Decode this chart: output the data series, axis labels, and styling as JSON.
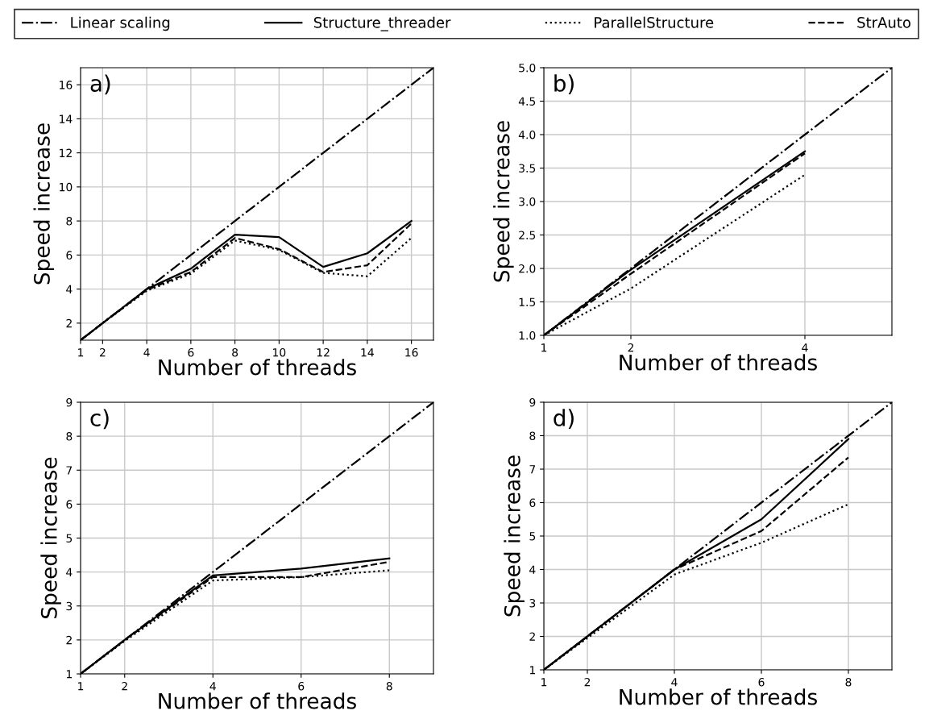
{
  "chart_data": [
    {
      "type": "line",
      "annotations": [
        "a)"
      ],
      "xlabel": "Number of threads",
      "ylabel": "Speed increase",
      "x": [
        1,
        2,
        4,
        6,
        8,
        10,
        12,
        14,
        16
      ],
      "xlim": [
        1,
        17
      ],
      "ylim": [
        1,
        17
      ],
      "xticks": [
        1,
        2,
        4,
        6,
        8,
        10,
        12,
        14,
        16
      ],
      "yticks": [
        2,
        4,
        6,
        8,
        10,
        12,
        14,
        16
      ],
      "grid": true,
      "legend": "top",
      "series": [
        {
          "name": "Linear scaling",
          "color": "#000000",
          "line_style": "dashdot",
          "x": [
            1,
            2,
            4,
            6,
            8,
            10,
            12,
            14,
            16,
            17
          ],
          "values": [
            1,
            2,
            4,
            6,
            8,
            10,
            12,
            14,
            16,
            17
          ]
        },
        {
          "name": "Structure_threader",
          "color": "#000000",
          "line_style": "solid",
          "values": [
            1,
            2,
            4.0,
            5.2,
            7.2,
            7.05,
            5.3,
            6.1,
            8.0
          ]
        },
        {
          "name": "ParallelStructure",
          "color": "#000000",
          "line_style": "dotted",
          "values": [
            1,
            2,
            3.9,
            4.9,
            6.85,
            6.3,
            4.95,
            4.75,
            7.0
          ]
        },
        {
          "name": "StrAuto",
          "color": "#000000",
          "line_style": "dashed",
          "values": [
            1,
            2,
            3.95,
            5.0,
            7.0,
            6.35,
            5.0,
            5.4,
            7.85
          ]
        }
      ]
    },
    {
      "type": "line",
      "annotations": [
        "b)"
      ],
      "xlabel": "Number of threads",
      "ylabel": "Speed increase",
      "x": [
        1,
        2,
        4
      ],
      "xlim": [
        1,
        5
      ],
      "ylim": [
        1,
        5
      ],
      "xticks": [
        1,
        2,
        4
      ],
      "yticks": [
        {
          "value": 1,
          "label": "1.0"
        },
        1.5,
        {
          "value": 2,
          "label": "2.0"
        },
        2.5,
        {
          "value": 3,
          "label": "3.0"
        },
        3.5,
        {
          "value": 4,
          "label": "4.0"
        },
        4.5,
        {
          "value": 5,
          "label": "5.0"
        }
      ],
      "grid": true,
      "series": [
        {
          "color": "#000000",
          "line_style": "dashdot",
          "x": [
            1,
            2,
            4,
            5
          ],
          "values": [
            1,
            2,
            4,
            5
          ]
        },
        {
          "color": "#000000",
          "line_style": "solid",
          "values": [
            1,
            1.98,
            3.75
          ]
        },
        {
          "color": "#000000",
          "line_style": "dotted",
          "values": [
            1,
            1.7,
            3.4
          ]
        },
        {
          "color": "#000000",
          "line_style": "dashed",
          "values": [
            1,
            1.92,
            3.72
          ]
        }
      ]
    },
    {
      "type": "line",
      "annotations": [
        "c)"
      ],
      "xlabel": "Number of threads",
      "ylabel": "Speed increase",
      "x": [
        1,
        2,
        4,
        6,
        8
      ],
      "xlim": [
        1,
        9
      ],
      "ylim": [
        1,
        9
      ],
      "xticks": [
        1,
        2,
        4,
        6,
        8
      ],
      "yticks": [
        1,
        2,
        3,
        4,
        5,
        6,
        7,
        8,
        9
      ],
      "grid": true,
      "series": [
        {
          "color": "#000000",
          "line_style": "dashdot",
          "x": [
            1,
            2,
            4,
            6,
            8,
            9
          ],
          "values": [
            1,
            2,
            4,
            6,
            8,
            9
          ]
        },
        {
          "color": "#000000",
          "line_style": "solid",
          "values": [
            1,
            2,
            3.9,
            4.1,
            4.4
          ]
        },
        {
          "color": "#000000",
          "line_style": "dotted",
          "values": [
            1,
            1.97,
            3.75,
            3.85,
            4.05
          ]
        },
        {
          "color": "#000000",
          "line_style": "dashed",
          "values": [
            1,
            2,
            3.85,
            3.85,
            4.3
          ]
        }
      ]
    },
    {
      "type": "line",
      "annotations": [
        "d)"
      ],
      "xlabel": "Number of threads",
      "ylabel": "Speed increase",
      "x": [
        1,
        2,
        4,
        6,
        8
      ],
      "xlim": [
        1,
        9
      ],
      "ylim": [
        1,
        9
      ],
      "xticks": [
        1,
        2,
        4,
        6,
        8
      ],
      "yticks": [
        1,
        2,
        3,
        4,
        5,
        6,
        7,
        8,
        9
      ],
      "grid": true,
      "series": [
        {
          "color": "#000000",
          "line_style": "dashdot",
          "x": [
            1,
            2,
            4,
            6,
            8,
            9
          ],
          "values": [
            1,
            2,
            4,
            6,
            8,
            9
          ]
        },
        {
          "color": "#000000",
          "line_style": "solid",
          "values": [
            1,
            2,
            4.0,
            5.5,
            7.9
          ]
        },
        {
          "color": "#000000",
          "line_style": "dotted",
          "values": [
            1,
            1.95,
            3.85,
            4.8,
            5.95
          ]
        },
        {
          "color": "#000000",
          "line_style": "dashed",
          "values": [
            1,
            2,
            4.0,
            5.15,
            7.35
          ]
        }
      ]
    }
  ]
}
